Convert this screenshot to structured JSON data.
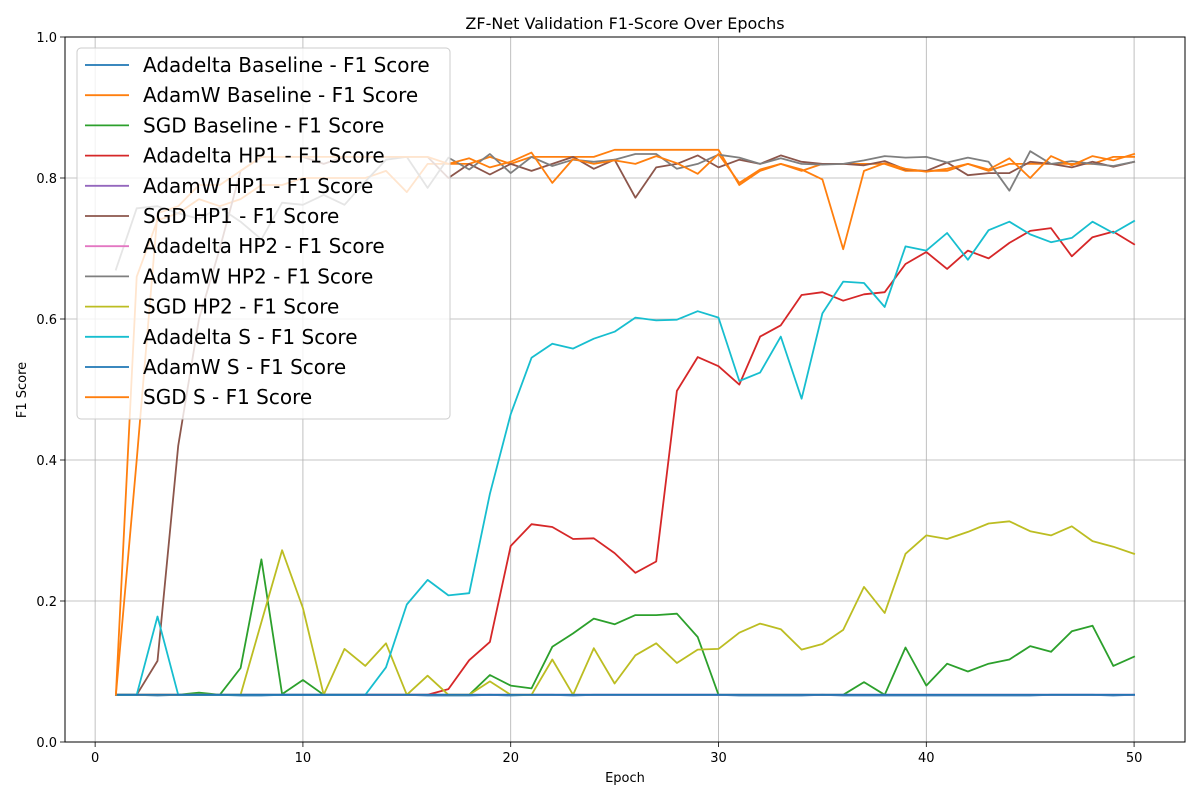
{
  "chart_data": {
    "type": "line",
    "title": "ZF-Net Validation F1-Score Over Epochs",
    "xlabel": "Epoch",
    "ylabel": "F1 Score",
    "xlim": [
      -1.45,
      52.45
    ],
    "ylim": [
      0.0,
      1.0
    ],
    "xticks": [
      0,
      10,
      20,
      30,
      40,
      50
    ],
    "yticks": [
      0.0,
      0.2,
      0.4,
      0.6,
      0.8,
      1.0
    ],
    "xtick_labels": [
      "0",
      "10",
      "20",
      "30",
      "40",
      "50"
    ],
    "ytick_labels": [
      "0.0",
      "0.2",
      "0.4",
      "0.6",
      "0.8",
      "1.0"
    ],
    "grid": true,
    "legend_position": "top-left",
    "x": [
      1,
      2,
      3,
      4,
      5,
      6,
      7,
      8,
      9,
      10,
      11,
      12,
      13,
      14,
      15,
      16,
      17,
      18,
      19,
      20,
      21,
      22,
      23,
      24,
      25,
      26,
      27,
      28,
      29,
      30,
      31,
      32,
      33,
      34,
      35,
      36,
      37,
      38,
      39,
      40,
      41,
      42,
      43,
      44,
      45,
      46,
      47,
      48,
      49,
      50
    ],
    "series": [
      {
        "name": "Adadelta Baseline - F1 Score",
        "color": "#1f77b4",
        "values": [
          0.067,
          0.067,
          0.066,
          0.067,
          0.067,
          0.067,
          0.066,
          0.066,
          0.067,
          0.067,
          0.067,
          0.067,
          0.067,
          0.067,
          0.067,
          0.066,
          0.066,
          0.066,
          0.067,
          0.066,
          0.067,
          0.067,
          0.066,
          0.067,
          0.067,
          0.067,
          0.067,
          0.067,
          0.067,
          0.067,
          0.066,
          0.066,
          0.066,
          0.066,
          0.067,
          0.066,
          0.066,
          0.066,
          0.066,
          0.066,
          0.066,
          0.066,
          0.066,
          0.066,
          0.066,
          0.067,
          0.067,
          0.067,
          0.066,
          0.067
        ]
      },
      {
        "name": "AdamW Baseline - F1 Score",
        "color": "#ff7f0e",
        "values": [
          0.067,
          0.66,
          0.74,
          0.75,
          0.77,
          0.76,
          0.77,
          0.79,
          0.79,
          0.8,
          0.8,
          0.8,
          0.8,
          0.81,
          0.78,
          0.82,
          0.82,
          0.82,
          0.83,
          0.82,
          0.83,
          0.83,
          0.83,
          0.83,
          0.84,
          0.84,
          0.84,
          0.84,
          0.84,
          0.84,
          0.79,
          0.81,
          0.82,
          0.81,
          0.82,
          0.82,
          0.82,
          0.82,
          0.81,
          0.81,
          0.81,
          0.82,
          0.81,
          0.82,
          0.82,
          0.82,
          0.82,
          0.82,
          0.83,
          0.83
        ]
      },
      {
        "name": "SGD Baseline - F1 Score",
        "color": "#2ca02c",
        "values": [
          0.067,
          0.067,
          0.067,
          0.067,
          0.07,
          0.067,
          0.105,
          0.259,
          0.068,
          0.088,
          0.067,
          0.067,
          0.067,
          0.067,
          0.067,
          0.067,
          0.067,
          0.067,
          0.095,
          0.08,
          0.076,
          0.135,
          0.154,
          0.175,
          0.167,
          0.18,
          0.18,
          0.182,
          0.149,
          0.067,
          0.067,
          0.067,
          0.067,
          0.067,
          0.067,
          0.067,
          0.085,
          0.067,
          0.134,
          0.08,
          0.111,
          0.1,
          0.111,
          0.117,
          0.136,
          0.128,
          0.157,
          0.165,
          0.108,
          0.121
        ]
      },
      {
        "name": "Adadelta HP1 - F1 Score",
        "color": "#d62728",
        "values": [
          0.067,
          0.067,
          0.067,
          0.067,
          0.067,
          0.067,
          0.067,
          0.067,
          0.067,
          0.067,
          0.067,
          0.067,
          0.067,
          0.067,
          0.067,
          0.067,
          0.075,
          0.116,
          0.142,
          0.278,
          0.309,
          0.305,
          0.288,
          0.289,
          0.268,
          0.24,
          0.256,
          0.498,
          0.546,
          0.533,
          0.507,
          0.575,
          0.591,
          0.634,
          0.638,
          0.626,
          0.635,
          0.638,
          0.678,
          0.695,
          0.671,
          0.697,
          0.686,
          0.708,
          0.725,
          0.729,
          0.689,
          0.716,
          0.724,
          0.706
        ]
      },
      {
        "name": "AdamW HP1 - F1 Score",
        "color": "#9467bd",
        "values": [
          0.067,
          0.067,
          0.067,
          0.067,
          0.067,
          0.067,
          0.067,
          0.067,
          0.067,
          0.067,
          0.067,
          0.067,
          0.067,
          0.067,
          0.067,
          0.067,
          0.067,
          0.067,
          0.067,
          0.067,
          0.067,
          0.067,
          0.067,
          0.067,
          0.067,
          0.067,
          0.067,
          0.067,
          0.067,
          0.067,
          0.067,
          0.067,
          0.067,
          0.067,
          0.067,
          0.067,
          0.067,
          0.067,
          0.067,
          0.067,
          0.067,
          0.067,
          0.067,
          0.067,
          0.067,
          0.067,
          0.067,
          0.067,
          0.067,
          0.067
        ]
      },
      {
        "name": "SGD HP1 - F1 Score",
        "color": "#8c564b",
        "values": [
          0.067,
          0.067,
          0.115,
          0.42,
          0.6,
          0.7,
          0.81,
          0.83,
          0.83,
          0.83,
          0.82,
          0.83,
          0.83,
          0.83,
          0.83,
          0.83,
          0.8,
          0.82,
          0.805,
          0.82,
          0.81,
          0.82,
          0.83,
          0.813,
          0.826,
          0.772,
          0.815,
          0.82,
          0.832,
          0.815,
          0.826,
          0.82,
          0.832,
          0.823,
          0.82,
          0.82,
          0.818,
          0.824,
          0.812,
          0.81,
          0.822,
          0.804,
          0.807,
          0.807,
          0.823,
          0.82,
          0.815,
          0.823,
          0.816,
          0.823
        ]
      },
      {
        "name": "Adadelta HP2 - F1 Score",
        "color": "#e377c2",
        "values": [
          0.067,
          0.067,
          0.067,
          0.067,
          0.067,
          0.067,
          0.067,
          0.067,
          0.067,
          0.067,
          0.067,
          0.067,
          0.067,
          0.067,
          0.067,
          0.067,
          0.067,
          0.067,
          0.067,
          0.067,
          0.067,
          0.067,
          0.067,
          0.067,
          0.067,
          0.067,
          0.067,
          0.067,
          0.067,
          0.067,
          0.067,
          0.067,
          0.067,
          0.067,
          0.067,
          0.067,
          0.067,
          0.067,
          0.067,
          0.067,
          0.067,
          0.067,
          0.067,
          0.067,
          0.067,
          0.067,
          0.067,
          0.067,
          0.067,
          0.067
        ]
      },
      {
        "name": "AdamW HP2 - F1 Score",
        "color": "#7f7f7f",
        "values": [
          0.67,
          0.757,
          0.76,
          0.75,
          0.742,
          0.758,
          0.738,
          0.713,
          0.765,
          0.762,
          0.776,
          0.762,
          0.795,
          0.826,
          0.83,
          0.786,
          0.829,
          0.812,
          0.834,
          0.807,
          0.83,
          0.817,
          0.826,
          0.823,
          0.826,
          0.834,
          0.834,
          0.813,
          0.82,
          0.833,
          0.829,
          0.82,
          0.828,
          0.82,
          0.819,
          0.82,
          0.825,
          0.831,
          0.829,
          0.83,
          0.822,
          0.829,
          0.823,
          0.782,
          0.838,
          0.82,
          0.824,
          0.82,
          0.817,
          0.823
        ]
      },
      {
        "name": "SGD HP2 - F1 Score",
        "color": "#bcbd22",
        "values": [
          0.067,
          0.067,
          0.067,
          0.067,
          0.067,
          0.067,
          0.067,
          0.17,
          0.272,
          0.19,
          0.067,
          0.132,
          0.108,
          0.14,
          0.067,
          0.094,
          0.067,
          0.067,
          0.086,
          0.067,
          0.067,
          0.117,
          0.067,
          0.133,
          0.083,
          0.123,
          0.14,
          0.112,
          0.131,
          0.132,
          0.155,
          0.168,
          0.16,
          0.131,
          0.139,
          0.159,
          0.22,
          0.183,
          0.267,
          0.293,
          0.288,
          0.298,
          0.31,
          0.313,
          0.299,
          0.293,
          0.306,
          0.285,
          0.277,
          0.267
        ]
      },
      {
        "name": "Adadelta S - F1 Score",
        "color": "#17becf",
        "values": [
          0.067,
          0.067,
          0.178,
          0.067,
          0.067,
          0.067,
          0.067,
          0.067,
          0.067,
          0.067,
          0.067,
          0.067,
          0.067,
          0.106,
          0.195,
          0.23,
          0.208,
          0.211,
          0.352,
          0.465,
          0.545,
          0.565,
          0.558,
          0.572,
          0.582,
          0.602,
          0.598,
          0.599,
          0.611,
          0.602,
          0.512,
          0.524,
          0.575,
          0.487,
          0.608,
          0.653,
          0.651,
          0.617,
          0.703,
          0.697,
          0.722,
          0.684,
          0.726,
          0.738,
          0.72,
          0.709,
          0.715,
          0.738,
          0.722,
          0.739
        ]
      },
      {
        "name": "AdamW S - F1 Score",
        "color": "#1f77b4",
        "values": [
          0.067,
          0.067,
          0.067,
          0.067,
          0.067,
          0.067,
          0.067,
          0.067,
          0.067,
          0.067,
          0.067,
          0.067,
          0.067,
          0.067,
          0.067,
          0.067,
          0.067,
          0.067,
          0.067,
          0.067,
          0.067,
          0.067,
          0.067,
          0.067,
          0.067,
          0.067,
          0.067,
          0.067,
          0.067,
          0.067,
          0.067,
          0.067,
          0.067,
          0.067,
          0.067,
          0.067,
          0.067,
          0.067,
          0.067,
          0.067,
          0.067,
          0.067,
          0.067,
          0.067,
          0.067,
          0.067,
          0.067,
          0.067,
          0.067,
          0.067
        ]
      },
      {
        "name": "SGD S - F1 Score",
        "color": "#ff7f0e",
        "values": [
          0.067,
          0.4,
          0.75,
          0.76,
          0.79,
          0.79,
          0.81,
          0.83,
          0.83,
          0.83,
          0.83,
          0.83,
          0.83,
          0.83,
          0.83,
          0.83,
          0.82,
          0.828,
          0.815,
          0.823,
          0.836,
          0.793,
          0.827,
          0.82,
          0.825,
          0.82,
          0.831,
          0.821,
          0.806,
          0.834,
          0.793,
          0.812,
          0.82,
          0.812,
          0.798,
          0.699,
          0.81,
          0.821,
          0.813,
          0.809,
          0.813,
          0.82,
          0.812,
          0.828,
          0.8,
          0.831,
          0.818,
          0.831,
          0.825,
          0.834
        ]
      }
    ]
  }
}
